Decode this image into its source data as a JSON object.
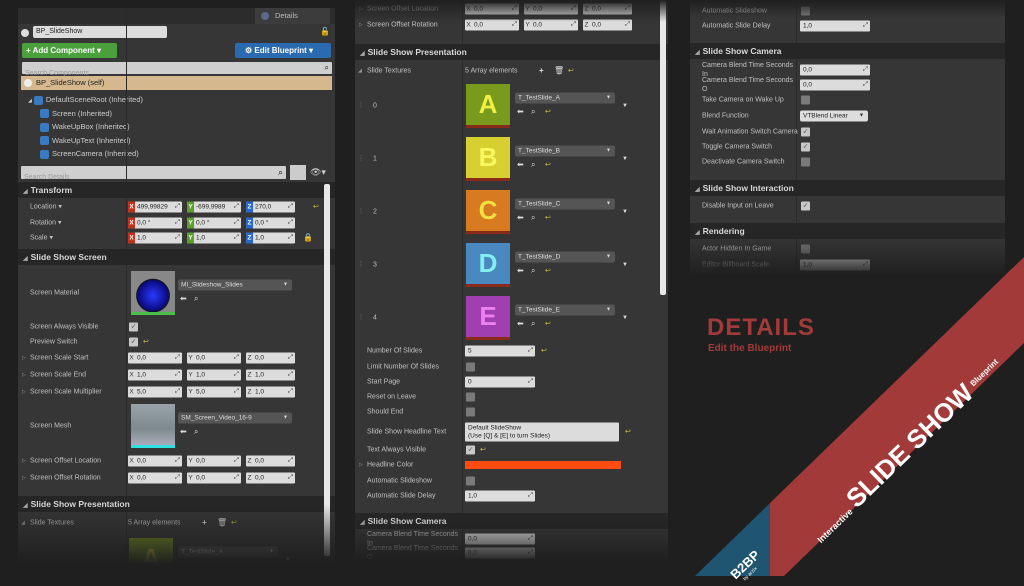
{
  "left": {
    "tab": "Details",
    "actor_name": "BP_SlideShow",
    "add_component": "+ Add Component ▾",
    "edit_blueprint": "⚙ Edit Blueprint ▾",
    "search_components_placeholder": "Search Components",
    "self_item": "BP_SlideShow (self)",
    "tree": [
      {
        "label": "DefaultSceneRoot (Inherited)",
        "icon": "scene-root-icon"
      },
      {
        "label": "Screen (Inherited)",
        "icon": "mesh-icon"
      },
      {
        "label": "WakeUpBox (Inherited)",
        "icon": "box-icon"
      },
      {
        "label": "WakeUpText (Inherited)",
        "icon": "text-icon"
      },
      {
        "label": "ScreenCamera (Inherited)",
        "icon": "camera-icon"
      }
    ],
    "search_details_placeholder": "Search Details",
    "rows": [
      {
        "type": "header",
        "label": "Transform"
      },
      {
        "type": "vec3",
        "label": "Location ▾",
        "colored": true,
        "x": "499,99829",
        "y": "-699,9989",
        "z": "270,0",
        "reset": true
      },
      {
        "type": "vec3",
        "label": "Rotation ▾",
        "colored": true,
        "x": "0,0 °",
        "y": "0,0 °",
        "z": "0,0 °"
      },
      {
        "type": "vec3",
        "label": "Scale ▾",
        "colored": true,
        "x": "1,0",
        "y": "1,0",
        "z": "1,0",
        "lock": true
      },
      {
        "type": "header",
        "label": "Slide Show Screen"
      },
      {
        "type": "asset",
        "label": "Screen Material",
        "asset": "MI_Slideshow_Slides",
        "thumb": "material"
      },
      {
        "type": "check",
        "label": "Screen Always Visible",
        "checked": true
      },
      {
        "type": "check",
        "label": "Preview Switch",
        "checked": true,
        "reset": true
      },
      {
        "type": "vec3",
        "label": "Screen Scale Start",
        "expand": true,
        "x": "0,0",
        "y": "0,0",
        "z": "0,0"
      },
      {
        "type": "vec3",
        "label": "Screen Scale End",
        "expand": true,
        "x": "1,0",
        "y": "1,0",
        "z": "1,0"
      },
      {
        "type": "vec3",
        "label": "Screen Scale Multiplier",
        "expand": true,
        "x": "5,0",
        "y": "5,0",
        "z": "1,0"
      },
      {
        "type": "asset",
        "label": "Screen Mesh",
        "asset": "SM_Screen_Video_16-9",
        "thumb": "mesh"
      },
      {
        "type": "vec3",
        "label": "Screen Offset Location",
        "expand": true,
        "x": "0,0",
        "y": "0,0",
        "z": "0,0"
      },
      {
        "type": "vec3",
        "label": "Screen Offset Rotation",
        "expand": true,
        "x": "0,0",
        "y": "0,0",
        "z": "0,0"
      },
      {
        "type": "header",
        "label": "Slide Show Presentation"
      },
      {
        "type": "array",
        "label": "Slide Textures",
        "count": "5 Array elements"
      },
      {
        "type": "slide",
        "index": "",
        "asset": "T_TestSlide_A",
        "letter": "A",
        "color": "#7a9a1e",
        "fg": "#f0f040"
      }
    ]
  },
  "middle": {
    "rows": [
      {
        "type": "vec3",
        "label": "Screen Offset Location",
        "expand": true,
        "x": "0,0",
        "y": "0,0",
        "z": "0,0"
      },
      {
        "type": "vec3",
        "label": "Screen Offset Rotation",
        "expand": true,
        "x": "0,0",
        "y": "0,0",
        "z": "0,0"
      },
      {
        "type": "header",
        "label": "Slide Show Presentation"
      },
      {
        "type": "array",
        "label": "Slide Textures",
        "count": "5 Array elements"
      },
      {
        "type": "slide",
        "index": "0",
        "asset": "T_TestSlide_A",
        "letter": "A",
        "color": "#7a9a1e",
        "fg": "#f0f040"
      },
      {
        "type": "slide",
        "index": "1",
        "asset": "T_TestSlide_B",
        "letter": "B",
        "color": "#d8d030",
        "fg": "#f8f860"
      },
      {
        "type": "slide",
        "index": "2",
        "asset": "T_TestSlide_C",
        "letter": "C",
        "color": "#d87a20",
        "fg": "#f0e040"
      },
      {
        "type": "slide",
        "index": "3",
        "asset": "T_TestSlide_D",
        "letter": "D",
        "color": "#4a88c0",
        "fg": "#80f0f0"
      },
      {
        "type": "slide",
        "index": "4",
        "asset": "T_TestSlide_E",
        "letter": "E",
        "color": "#a040b0",
        "fg": "#f080f0"
      },
      {
        "type": "num",
        "label": "Number Of Slides",
        "value": "5",
        "reset": true
      },
      {
        "type": "check",
        "label": "Limit Number Of Slides",
        "checked": false
      },
      {
        "type": "num",
        "label": "Start Page",
        "value": "0"
      },
      {
        "type": "check",
        "label": "Reset on Leave",
        "checked": false
      },
      {
        "type": "check",
        "label": "Should End",
        "checked": false
      },
      {
        "type": "text",
        "label": "Slide Show Headline Text",
        "value": "Default SlideShow\n(Use [Q] & [E] to turn Slides)",
        "reset": true
      },
      {
        "type": "check",
        "label": "Text Always Visible",
        "checked": true,
        "reset": true
      },
      {
        "type": "color",
        "label": "Headline Color",
        "expand": true,
        "value": "#ff4a10"
      },
      {
        "type": "check",
        "label": "Automatic Slideshow",
        "checked": false
      },
      {
        "type": "num",
        "label": "Automatic Slide Delay",
        "value": "1,0"
      },
      {
        "type": "header",
        "label": "Slide Show Camera"
      },
      {
        "type": "num",
        "label": "Camera Blend Time Seconds In",
        "value": "0,0"
      },
      {
        "type": "num",
        "label": "Camera Blend Time Seconds O",
        "value": "0,0"
      }
    ]
  },
  "right": {
    "rows": [
      {
        "type": "check",
        "label": "Automatic Slideshow",
        "checked": false
      },
      {
        "type": "num",
        "label": "Automatic Slide Delay",
        "value": "1,0"
      },
      {
        "type": "header",
        "label": "Slide Show Camera"
      },
      {
        "type": "num",
        "label": "Camera Blend Time Seconds In",
        "value": "0,0"
      },
      {
        "type": "num",
        "label": "Camera Blend Time Seconds O",
        "value": "0,0"
      },
      {
        "type": "check",
        "label": "Take Camera on Wake Up",
        "checked": false
      },
      {
        "type": "select",
        "label": "Blend Function",
        "value": "VTBlend Linear"
      },
      {
        "type": "check",
        "label": "Wait Animation Switch Camera",
        "checked": true
      },
      {
        "type": "check",
        "label": "Toggle Camera Switch",
        "checked": true
      },
      {
        "type": "check",
        "label": "Deactivate Camera Switch",
        "checked": false
      },
      {
        "type": "header",
        "label": "Slide Show Interaction"
      },
      {
        "type": "check",
        "label": "Disable Input on Leave",
        "checked": true
      },
      {
        "type": "header",
        "label": "Rendering"
      },
      {
        "type": "check",
        "label": "Actor Hidden In Game",
        "checked": false
      },
      {
        "type": "num",
        "label": "Editor Billboard Scale",
        "value": "1,0"
      }
    ]
  },
  "promo": {
    "title": "DETAILS",
    "subtitle": "Edit the Blueprint",
    "banner_prefix": "Interactive",
    "banner_main": "SLIDE SHOW",
    "banner_suffix": "Blueprint",
    "logo": "B2BP",
    "logo_sub": "by arzix",
    "accent": "#a33a3a",
    "logo_color": "#1f5570"
  }
}
